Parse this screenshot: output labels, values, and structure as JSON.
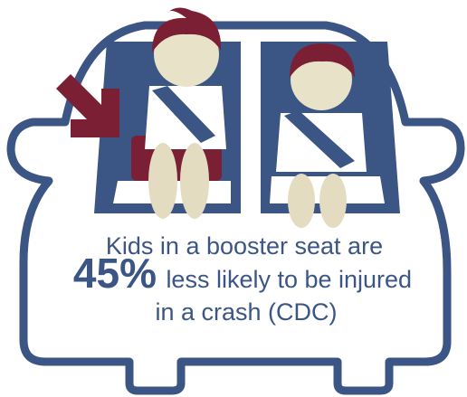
{
  "caption": {
    "line1": "Kids in a booster seat are",
    "highlight": "45%",
    "line2": "less likely to be injured",
    "line3": "in a crash (CDC)"
  }
}
